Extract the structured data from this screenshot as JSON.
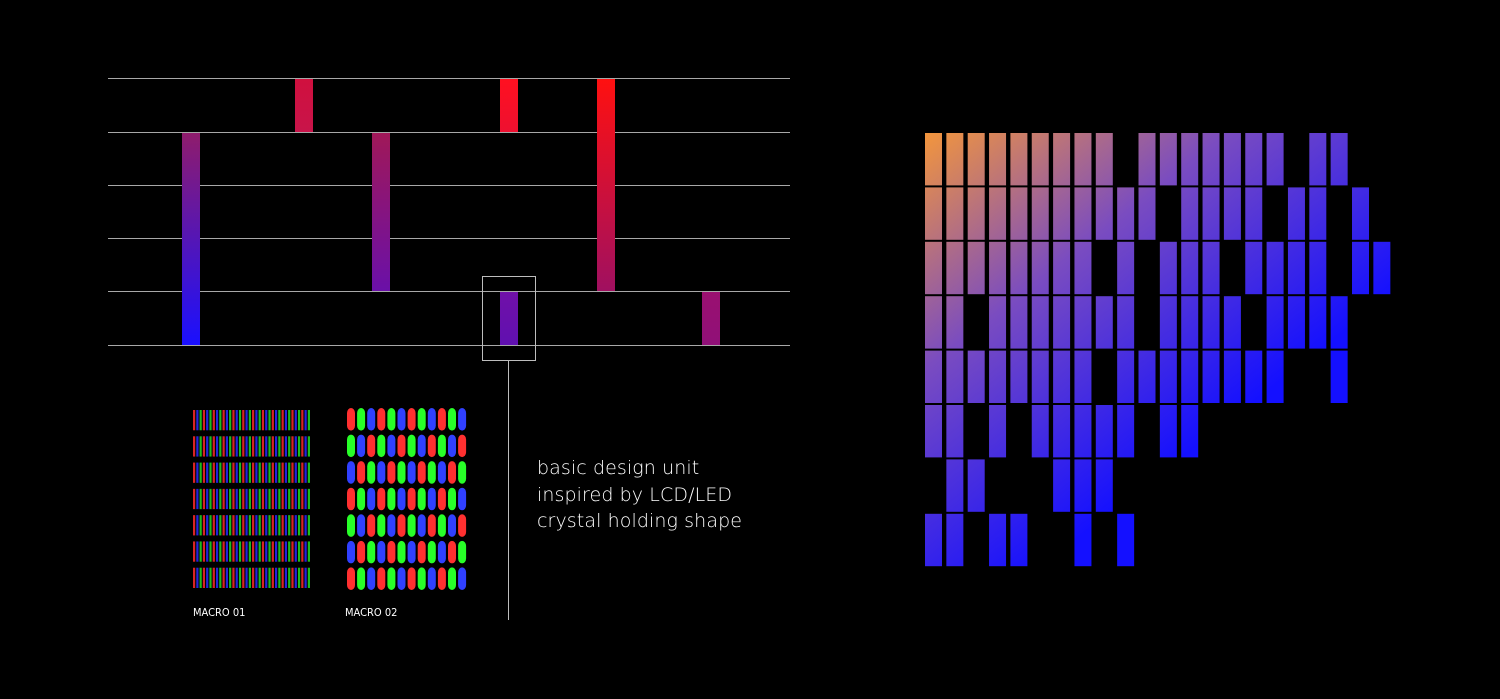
{
  "caption": {
    "lines": [
      "basic design unit",
      "inspired by LCD/LED",
      "crystal holding shape"
    ]
  },
  "macros": [
    {
      "label": "MACRO 01"
    },
    {
      "label": "MACRO 02"
    }
  ],
  "colors": {
    "background": "#000000",
    "staff_line": "#a8a8a8",
    "gradient_orange": "#f3963c",
    "gradient_blue": "#1410ff",
    "bar_red": "#ff1010",
    "bar_blue": "#1a10ff"
  }
}
